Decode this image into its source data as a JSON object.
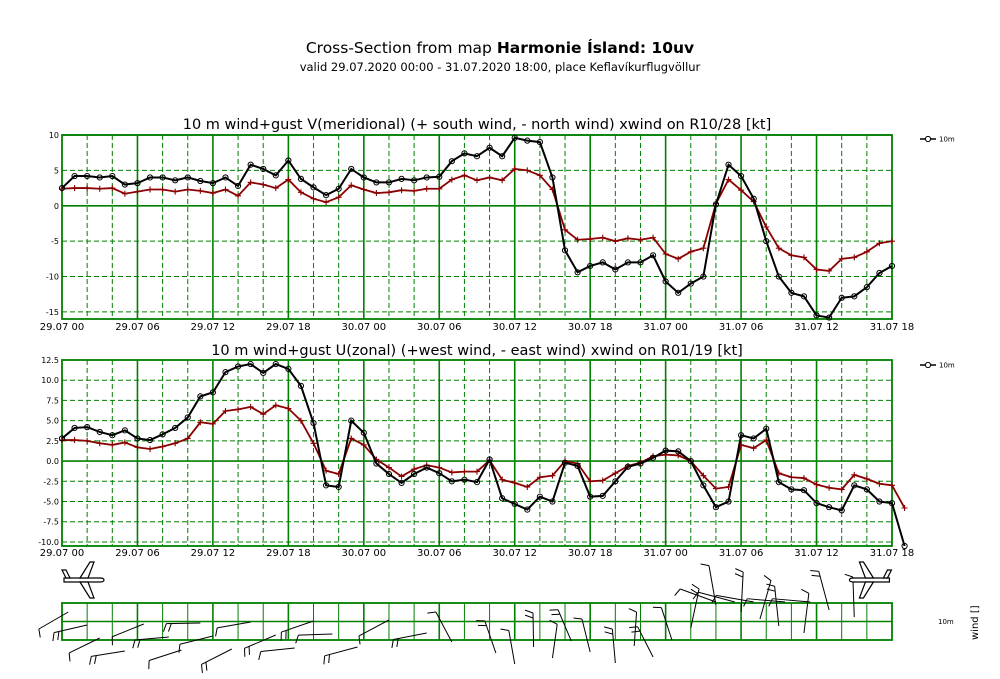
{
  "header": {
    "title_prefix": "Cross-Section from map",
    "title_bold": "Harmonie Ísland: 10uv",
    "subtitle": "valid 29.07.2020 00:00 - 31.07.2020 18:00, place Keflavíkurflugvöllur"
  },
  "colors": {
    "grid": "#008000",
    "wind": "#000000",
    "gust": "#8b0000",
    "background": "#ffffff"
  },
  "x_tick_labels": [
    "29.07 00",
    "29.07 06",
    "29.07 12",
    "29.07 18",
    "30.07 00",
    "30.07 06",
    "30.07 12",
    "30.07 18",
    "31.07 00",
    "31.07 06",
    "31.07 12",
    "31.07 18"
  ],
  "chart_data": [
    {
      "type": "line",
      "title": "10 m wind+gust V(meridional) (+ south wind, - north wind) xwind on R10/28 [kt]",
      "x_range_hours": [
        0,
        66
      ],
      "ylim": [
        -16,
        10
      ],
      "y_ticks": [
        10,
        5,
        0,
        -5,
        -10,
        -15
      ],
      "y_tick_labels": [
        "10",
        "5",
        "0",
        "-5",
        "-10",
        "-15"
      ],
      "legend": {
        "label": "10m",
        "placement": "right"
      },
      "grid": true,
      "series": [
        {
          "name": "10m",
          "color": "#000000",
          "marker": "circle",
          "values": [
            2.5,
            4.2,
            4.2,
            4.0,
            4.2,
            3.0,
            3.2,
            4.0,
            4.0,
            3.6,
            4.0,
            3.5,
            3.2,
            4.0,
            2.8,
            5.8,
            5.2,
            4.3,
            6.4,
            3.8,
            2.6,
            1.5,
            2.4,
            5.2,
            4.0,
            3.3,
            3.3,
            3.8,
            3.6,
            4.0,
            4.1,
            6.3,
            7.4,
            7.0,
            8.2,
            7.0,
            9.6,
            9.2,
            9.0,
            4.0,
            -6.3,
            -9.4,
            -8.5,
            -8.0,
            -9.0,
            -8.0,
            -8.0,
            -7.0,
            -10.7,
            -12.3,
            -11.0,
            -10.0,
            0.2,
            5.8,
            4.2,
            1.0,
            -5.0,
            -10.0,
            -12.3,
            -12.8,
            -15.5,
            -15.8,
            -13.0,
            -12.8,
            -11.5,
            -9.5,
            -8.5
          ]
        },
        {
          "name": "gust",
          "color": "#8b0000",
          "marker": "plus",
          "values": [
            2.4,
            2.5,
            2.5,
            2.4,
            2.5,
            1.7,
            2.0,
            2.3,
            2.3,
            2.0,
            2.3,
            2.1,
            1.8,
            2.3,
            1.4,
            3.3,
            3.0,
            2.5,
            3.7,
            1.9,
            1.0,
            0.5,
            1.2,
            2.9,
            2.3,
            1.8,
            1.9,
            2.2,
            2.1,
            2.4,
            2.4,
            3.7,
            4.3,
            3.6,
            4.0,
            3.6,
            5.2,
            5.0,
            4.3,
            2.3,
            -3.4,
            -4.8,
            -4.7,
            -4.5,
            -5.0,
            -4.6,
            -4.8,
            -4.5,
            -6.8,
            -7.5,
            -6.5,
            -6.0,
            0.3,
            3.7,
            2.2,
            0.6,
            -3.0,
            -6.0,
            -7.0,
            -7.3,
            -9.0,
            -9.2,
            -7.5,
            -7.3,
            -6.5,
            -5.3,
            -5.0
          ]
        }
      ]
    },
    {
      "type": "line",
      "title": "10 m wind+gust U(zonal) (+west wind, - east wind) xwind on R01/19 [kt]",
      "x_range_hours": [
        0,
        66
      ],
      "ylim": [
        -10.5,
        12.5
      ],
      "y_ticks": [
        12.5,
        10,
        7.5,
        5,
        2.5,
        0,
        -2.5,
        -5,
        -7.5,
        -10
      ],
      "y_tick_labels": [
        "12.5",
        "10.0",
        "7.5",
        "5.0",
        "2.5",
        "0.0",
        "-2.5",
        "-5.0",
        "-7.5",
        "-10.0"
      ],
      "legend": {
        "label": "10m",
        "placement": "right"
      },
      "grid": true,
      "series": [
        {
          "name": "10m",
          "color": "#000000",
          "marker": "circle",
          "values": [
            2.8,
            4.1,
            4.2,
            3.6,
            3.2,
            3.8,
            2.8,
            2.6,
            3.3,
            4.1,
            5.4,
            8.0,
            8.5,
            11.0,
            11.7,
            12.0,
            10.9,
            12.0,
            11.4,
            9.3,
            4.7,
            -3.0,
            -3.2,
            5.0,
            3.5,
            -0.3,
            -1.6,
            -2.7,
            -1.6,
            -0.8,
            -1.5,
            -2.5,
            -2.3,
            -2.6,
            0.2,
            -4.6,
            -5.3,
            -6.0,
            -4.4,
            -5.0,
            -0.2,
            -0.6,
            -4.4,
            -4.3,
            -2.5,
            -0.7,
            -0.3,
            0.4,
            1.3,
            1.2,
            0.0,
            -3.0,
            -5.7,
            -5.0,
            3.2,
            2.8,
            4.0,
            -2.6,
            -3.5,
            -3.6,
            -5.2,
            -5.7,
            -6.1,
            -3.0,
            -3.5,
            -5.0,
            -5.2,
            -10.5
          ]
        },
        {
          "name": "gust",
          "color": "#8b0000",
          "marker": "plus",
          "values": [
            2.6,
            2.6,
            2.5,
            2.2,
            2.0,
            2.3,
            1.7,
            1.5,
            1.8,
            2.2,
            2.8,
            4.8,
            4.6,
            6.2,
            6.4,
            6.7,
            5.8,
            6.9,
            6.5,
            5.0,
            2.2,
            -1.2,
            -1.6,
            2.8,
            2.0,
            0.2,
            -0.8,
            -1.9,
            -1.0,
            -0.5,
            -0.8,
            -1.4,
            -1.3,
            -1.3,
            0.1,
            -2.3,
            -2.7,
            -3.2,
            -2.0,
            -1.8,
            0.0,
            -0.3,
            -2.5,
            -2.4,
            -1.5,
            -0.6,
            -0.2,
            0.6,
            0.8,
            0.7,
            0.0,
            -1.8,
            -3.4,
            -3.2,
            2.0,
            1.6,
            2.6,
            -1.5,
            -2.0,
            -2.1,
            -2.9,
            -3.3,
            -3.5,
            -1.7,
            -2.2,
            -2.8,
            -3.0,
            -5.8
          ]
        }
      ]
    }
  ],
  "barb_panel": {
    "row_label": "10m",
    "axis_label": "wind []",
    "barbs_top": [
      {
        "hour": 0,
        "kind": "plane"
      },
      {
        "hour": 57.5,
        "kind": "barb"
      },
      {
        "hour": 58.5,
        "kind": "barb"
      }
    ],
    "barbs_bottom": [
      {
        "hour": 0.5,
        "kind": "barb"
      },
      {
        "hour": 2,
        "kind": "barb"
      },
      {
        "hour": 3,
        "kind": "barb"
      },
      {
        "hour": 5,
        "kind": "barb"
      },
      {
        "hour": 6.5,
        "kind": "barb"
      },
      {
        "hour": 8.5,
        "kind": "barb"
      },
      {
        "hour": 9.5,
        "kind": "barb"
      },
      {
        "hour": 11,
        "kind": "barb"
      },
      {
        "hour": 12,
        "kind": "barb"
      },
      {
        "hour": 13.5,
        "kind": "barb"
      },
      {
        "hour": 15,
        "kind": "barb"
      },
      {
        "hour": 17,
        "kind": "barb"
      },
      {
        "hour": 18.5,
        "kind": "barb"
      },
      {
        "hour": 20,
        "kind": "barb"
      },
      {
        "hour": 21.5,
        "kind": "barb"
      },
      {
        "hour": 23.5,
        "kind": "barb"
      },
      {
        "hour": 26,
        "kind": "barb"
      },
      {
        "hour": 29,
        "kind": "barb"
      },
      {
        "hour": 31,
        "kind": "barb"
      },
      {
        "hour": 34.5,
        "kind": "barb"
      },
      {
        "hour": 36,
        "kind": "barb"
      },
      {
        "hour": 37.5,
        "kind": "barb"
      },
      {
        "hour": 39,
        "kind": "barb"
      },
      {
        "hour": 40.5,
        "kind": "barb"
      },
      {
        "hour": 42,
        "kind": "barb"
      },
      {
        "hour": 44,
        "kind": "barb"
      },
      {
        "hour": 45.5,
        "kind": "barb"
      },
      {
        "hour": 47,
        "kind": "barb"
      },
      {
        "hour": 48.5,
        "kind": "barb"
      },
      {
        "hour": 50,
        "kind": "barb"
      },
      {
        "hour": 52,
        "kind": "barb"
      },
      {
        "hour": 54,
        "kind": "barb"
      },
      {
        "hour": 55.5,
        "kind": "barb"
      },
      {
        "hour": 57,
        "kind": "barb"
      },
      {
        "hour": 59,
        "kind": "barb"
      },
      {
        "hour": 61,
        "kind": "barb"
      },
      {
        "hour": 63,
        "kind": "barb"
      },
      {
        "hour": 65,
        "kind": "plane"
      }
    ]
  }
}
